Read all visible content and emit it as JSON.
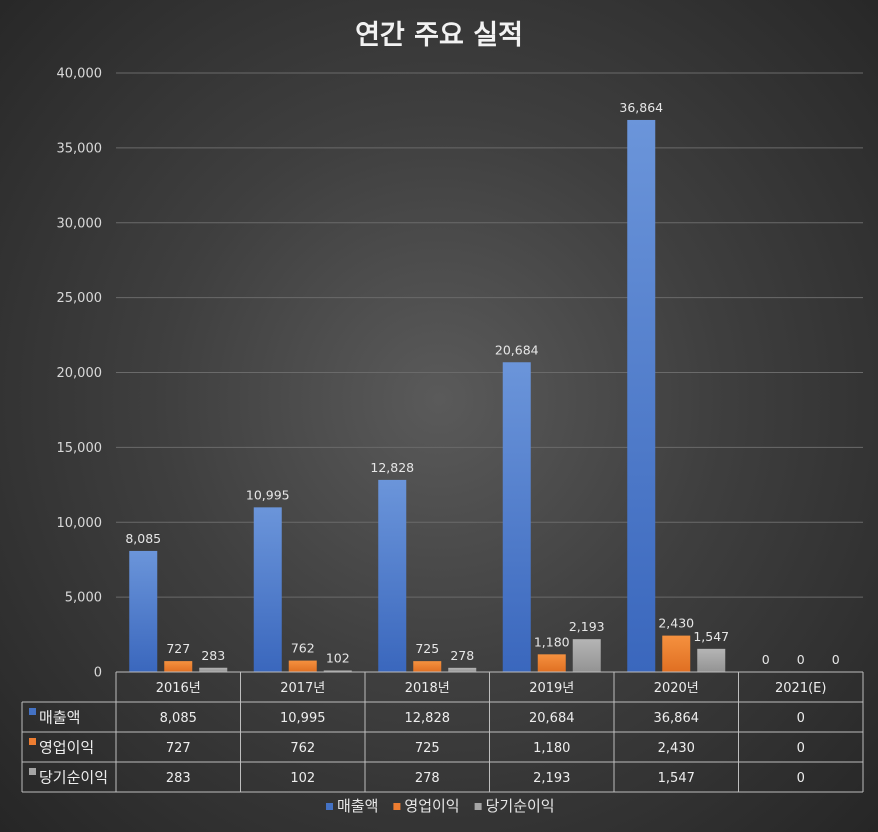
{
  "chart_data": {
    "type": "bar",
    "title": "연간 주요 실적",
    "categories": [
      "2016년",
      "2017년",
      "2018년",
      "2019년",
      "2020년",
      "2021(E)"
    ],
    "series": [
      {
        "name": "매출액",
        "color": "#4472c4",
        "values": [
          8085,
          10995,
          12828,
          20684,
          36864,
          0
        ]
      },
      {
        "name": "영업이익",
        "color": "#ed7d31",
        "values": [
          727,
          762,
          725,
          1180,
          2430,
          0
        ]
      },
      {
        "name": "당기순이익",
        "color": "#a5a5a5",
        "values": [
          283,
          102,
          278,
          2193,
          1547,
          0
        ]
      }
    ],
    "y_ticks": [
      0,
      5000,
      10000,
      15000,
      20000,
      25000,
      30000,
      35000,
      40000
    ],
    "ylim": [
      0,
      40000
    ],
    "grid": true,
    "legend": "bottom",
    "data_table": true
  }
}
